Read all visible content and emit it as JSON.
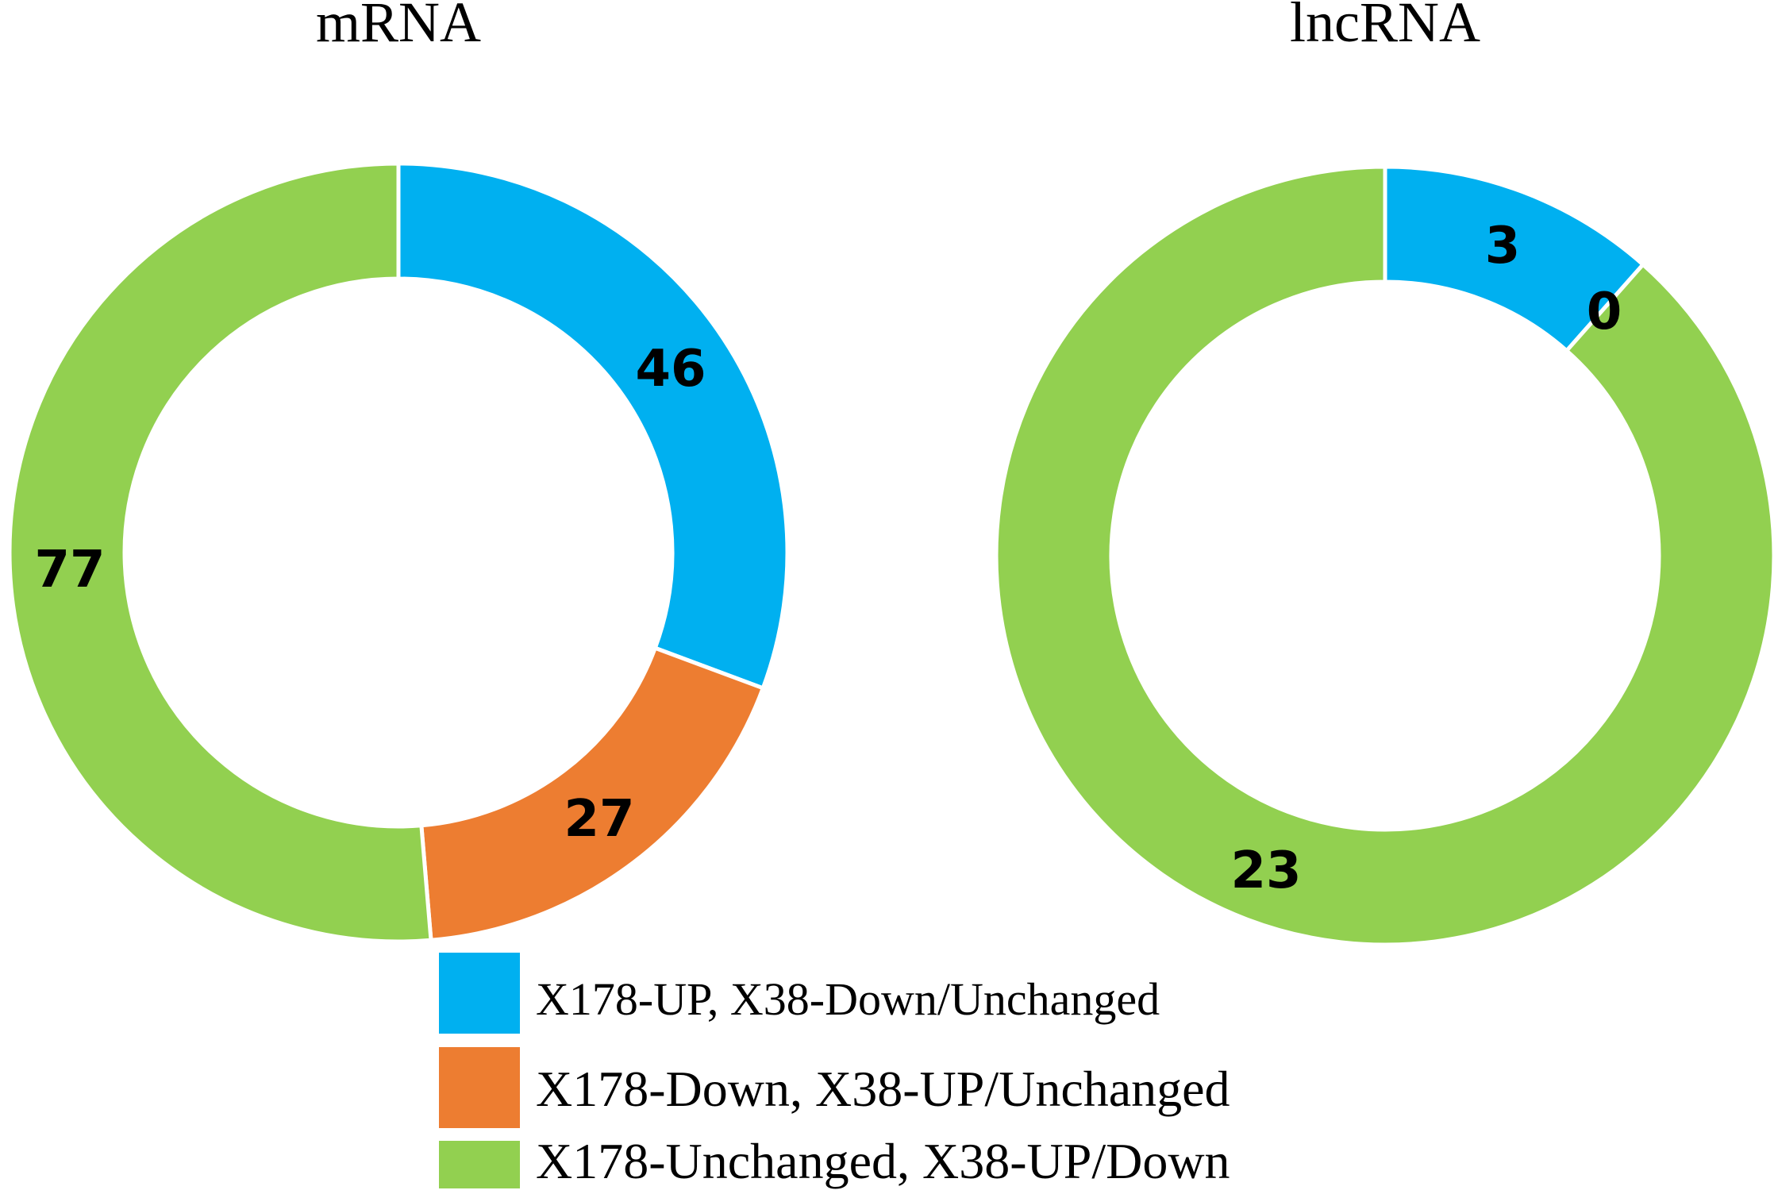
{
  "chart_data": [
    {
      "type": "pie",
      "title": "mRNA",
      "categories": [
        "X178-UP, X38-Down/Unchanged",
        "X178-Down, X38-UP/Unchanged",
        "X178-Unchanged, X38-UP/Down"
      ],
      "values": [
        46,
        27,
        77
      ],
      "colors": [
        "#00B0F0",
        "#ED7D31",
        "#92D050"
      ]
    },
    {
      "type": "pie",
      "title": "lncRNA",
      "categories": [
        "X178-UP, X38-Down/Unchanged",
        "X178-Down, X38-UP/Unchanged",
        "X178-Unchanged, X38-UP/Down"
      ],
      "values": [
        3,
        0,
        23
      ],
      "colors": [
        "#00B0F0",
        "#ED7D31",
        "#92D050"
      ]
    }
  ],
  "legend": {
    "items": [
      {
        "label": "X178-UP, X38-Down/Unchanged",
        "color": "#00B0F0"
      },
      {
        "label": "X178-Down, X38-UP/Unchanged",
        "color": "#ED7D31"
      },
      {
        "label": "X178-Unchanged, X38-UP/Down",
        "color": "#92D050"
      }
    ],
    "placement": "bottom-center"
  }
}
